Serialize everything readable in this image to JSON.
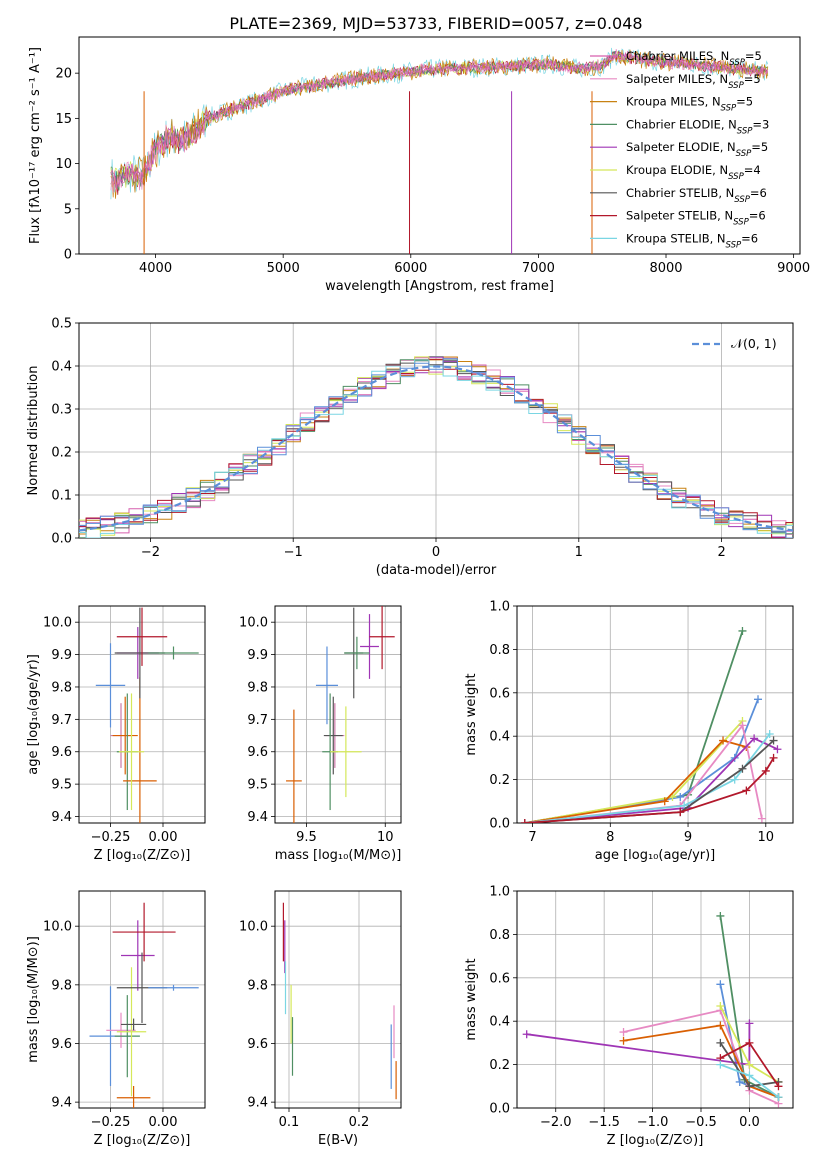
{
  "figure": {
    "title": "PLATE=2369, MJD=53733, FIBERID=0057, z=0.048"
  },
  "colors": [
    "#cc79a7",
    "#e78ac3",
    "#d95f02",
    "#4f8f63",
    "#9f35b5",
    "#d5e85a",
    "#555555",
    "#b2182b",
    "#7ad6e3",
    "#5b8fd9"
  ],
  "models": [
    {
      "name": "Chabrier MILES",
      "n": "5",
      "color": "#d65fae"
    },
    {
      "name": "Salpeter MILES",
      "n": "5",
      "color": "#e78ac3"
    },
    {
      "name": "Kroupa MILES",
      "n": "5",
      "color": "#c88213"
    },
    {
      "name": "Chabrier ELODIE",
      "n": "3",
      "color": "#4f8f63"
    },
    {
      "name": "Salpeter ELODIE",
      "n": "5",
      "color": "#9f35b5"
    },
    {
      "name": "Kroupa ELODIE",
      "n": "4",
      "color": "#d5e85a"
    },
    {
      "name": "Chabrier STELIB",
      "n": "6",
      "color": "#555555"
    },
    {
      "name": "Salpeter STELIB",
      "n": "6",
      "color": "#b2182b"
    },
    {
      "name": "Kroupa STELIB",
      "n": "6",
      "color": "#7ad6e3"
    }
  ],
  "chart_data": [
    {
      "id": "spectrum",
      "type": "line",
      "xlabel": "wavelength [Angstrom, rest frame]",
      "ylabel": "Flux [fλ10⁻¹⁷ erg cm⁻² s⁻¹ A⁻¹]",
      "xlim": [
        3400,
        9050
      ],
      "ylim": [
        0,
        24
      ],
      "xticks": [
        4000,
        5000,
        6000,
        7000,
        8000,
        9000
      ],
      "yticks": [
        0,
        5,
        10,
        15,
        20
      ],
      "grid": false,
      "legend": "top-right",
      "continuum": {
        "x": [
          3650,
          3700,
          3800,
          3900,
          4000,
          4100,
          4200,
          4300,
          4400,
          4500,
          4700,
          5000,
          5300,
          5600,
          5900,
          6200,
          6500,
          6800,
          7100,
          7300,
          7500,
          7600,
          7800,
          8000,
          8200,
          8500,
          8800
        ],
        "y": [
          8.5,
          8.0,
          9.0,
          8.5,
          11.5,
          13.0,
          12.5,
          13.5,
          15.0,
          15.5,
          16.5,
          18.0,
          18.8,
          19.5,
          20.0,
          20.5,
          20.6,
          20.8,
          21.0,
          20.5,
          20.8,
          22.0,
          21.5,
          21.2,
          21.0,
          20.5,
          20.2
        ]
      }
    },
    {
      "id": "residuals",
      "type": "line",
      "xlabel": "(data-model)/error",
      "ylabel": "Normed distribution",
      "xlim": [
        -2.5,
        2.5
      ],
      "ylim": [
        0,
        0.5
      ],
      "xticks": [
        -2,
        -1,
        0,
        1,
        2
      ],
      "yticks": [
        0.0,
        0.1,
        0.2,
        0.3,
        0.4,
        0.5
      ],
      "grid": true,
      "legend": "top-right",
      "reference_label": "𝒩(0, 1)",
      "reference": {
        "mean": 0,
        "sigma": 1
      }
    },
    {
      "id": "age-vs-Z",
      "type": "scatter",
      "xlabel": "Z [log₁₀(Z/Z⊙)]",
      "ylabel": "age  [log₁₀(age/yr)]",
      "xlim": [
        -0.4,
        0.2
      ],
      "ylim": [
        9.38,
        10.05
      ],
      "xticks": [
        -0.25,
        0.0
      ],
      "xticklabels": [
        "−0.25",
        "0.00"
      ],
      "yticks": [
        9.4,
        9.5,
        9.6,
        9.7,
        9.8,
        9.9,
        10.0
      ],
      "grid": true,
      "points": [
        {
          "x": -0.25,
          "y": 9.805,
          "xerr": 0.07,
          "yerr": 0.13,
          "c": 9
        },
        {
          "x": -0.2,
          "y": 9.65,
          "xerr": 0.05,
          "yerr": 0.1,
          "c": 0
        },
        {
          "x": -0.18,
          "y": 9.65,
          "xerr": 0.06,
          "yerr": 0.12,
          "c": 2
        },
        {
          "x": -0.17,
          "y": 9.6,
          "xerr": 0.05,
          "yerr": 0.18,
          "c": 3
        },
        {
          "x": -0.11,
          "y": 9.51,
          "xerr": 0.08,
          "yerr": 0.32,
          "c": 2
        },
        {
          "x": -0.15,
          "y": 9.6,
          "xerr": 0.06,
          "yerr": 0.18,
          "c": 5
        },
        {
          "x": -0.12,
          "y": 9.905,
          "xerr": 0.1,
          "yerr": 0.08,
          "c": 4
        },
        {
          "x": -0.11,
          "y": 9.905,
          "xerr": 0.12,
          "yerr": 0.14,
          "c": 6
        },
        {
          "x": -0.1,
          "y": 9.955,
          "xerr": 0.12,
          "yerr": 0.09,
          "c": 7
        },
        {
          "x": 0.05,
          "y": 9.905,
          "xerr": 0.12,
          "yerr": 0.02,
          "c": 3
        }
      ]
    },
    {
      "id": "age-vs-mass",
      "type": "scatter",
      "xlabel": "mass [log₁₀(M/M⊙)]",
      "xlim": [
        9.3,
        10.1
      ],
      "ylim": [
        9.38,
        10.05
      ],
      "xticks": [
        9.5,
        10.0
      ],
      "yticks": [
        9.4,
        9.5,
        9.6,
        9.7,
        9.8,
        9.9,
        10.0
      ],
      "grid": true,
      "points": [
        {
          "x": 9.63,
          "y": 9.805,
          "xerr": 0.07,
          "yerr": 0.12,
          "c": 9
        },
        {
          "x": 9.68,
          "y": 9.65,
          "xerr": 0.06,
          "yerr": 0.1,
          "c": 0
        },
        {
          "x": 9.67,
          "y": 9.65,
          "xerr": 0.06,
          "yerr": 0.12,
          "c": 6
        },
        {
          "x": 9.65,
          "y": 9.6,
          "xerr": 0.05,
          "yerr": 0.18,
          "c": 3
        },
        {
          "x": 9.42,
          "y": 9.51,
          "xerr": 0.05,
          "yerr": 0.22,
          "c": 2
        },
        {
          "x": 9.75,
          "y": 9.6,
          "xerr": 0.1,
          "yerr": 0.14,
          "c": 5
        },
        {
          "x": 9.9,
          "y": 9.925,
          "xerr": 0.06,
          "yerr": 0.1,
          "c": 4
        },
        {
          "x": 9.8,
          "y": 9.905,
          "xerr": 0.06,
          "yerr": 0.14,
          "c": 6
        },
        {
          "x": 9.98,
          "y": 9.955,
          "xerr": 0.08,
          "yerr": 0.1,
          "c": 7
        },
        {
          "x": 9.82,
          "y": 9.905,
          "xerr": 0.08,
          "yerr": 0.05,
          "c": 3
        }
      ]
    },
    {
      "id": "weight-vs-age",
      "type": "line",
      "xlabel": "age  [log₁₀(age/yr)]",
      "ylabel": "mass weight",
      "xlim": [
        6.8,
        10.35
      ],
      "ylim": [
        0,
        1.0
      ],
      "xticks": [
        7,
        8,
        9,
        10
      ],
      "yticks": [
        0.0,
        0.2,
        0.4,
        0.6,
        0.8,
        1.0
      ],
      "grid": true,
      "series": [
        {
          "c": 3,
          "x": [
            6.9,
            9.0,
            9.7
          ],
          "y": [
            0.0,
            0.13,
            0.885
          ]
        },
        {
          "c": 9,
          "x": [
            6.9,
            8.9,
            9.6,
            9.9
          ],
          "y": [
            0.0,
            0.12,
            0.3,
            0.57
          ]
        },
        {
          "c": 5,
          "x": [
            6.9,
            8.8,
            9.7
          ],
          "y": [
            0.0,
            0.12,
            0.47
          ]
        },
        {
          "c": 2,
          "x": [
            6.9,
            8.7,
            9.45,
            9.75
          ],
          "y": [
            0.0,
            0.1,
            0.38,
            0.35
          ]
        },
        {
          "c": 1,
          "x": [
            6.9,
            8.9,
            9.7,
            9.95
          ],
          "y": [
            0.0,
            0.08,
            0.45,
            0.02
          ]
        },
        {
          "c": 4,
          "x": [
            6.9,
            9.0,
            9.85,
            10.15
          ],
          "y": [
            0.0,
            0.07,
            0.39,
            0.34
          ]
        },
        {
          "c": 8,
          "x": [
            6.9,
            8.95,
            9.6,
            10.05
          ],
          "y": [
            0.0,
            0.08,
            0.2,
            0.41
          ]
        },
        {
          "c": 6,
          "x": [
            6.9,
            8.9,
            9.7,
            10.1
          ],
          "y": [
            0.0,
            0.05,
            0.25,
            0.38
          ]
        },
        {
          "c": 7,
          "x": [
            6.9,
            8.9,
            9.75,
            10.0,
            10.1
          ],
          "y": [
            0.0,
            0.05,
            0.15,
            0.24,
            0.3
          ]
        }
      ]
    },
    {
      "id": "mass-vs-Z",
      "type": "scatter",
      "xlabel": "Z [log₁₀(Z/Z⊙)]",
      "ylabel": "mass [log₁₀(M/M⊙)]",
      "xlim": [
        -0.4,
        0.2
      ],
      "ylim": [
        9.38,
        10.12
      ],
      "xticks": [
        -0.25,
        0.0
      ],
      "xticklabels": [
        "−0.25",
        "0.00"
      ],
      "yticks": [
        9.4,
        9.6,
        9.8,
        10.0
      ],
      "grid": true,
      "points": [
        {
          "x": -0.25,
          "y": 9.625,
          "xerr": 0.1,
          "yerr": 0.17,
          "c": 9
        },
        {
          "x": -0.2,
          "y": 9.645,
          "xerr": 0.07,
          "yerr": 0.06,
          "c": 1
        },
        {
          "x": -0.17,
          "y": 9.625,
          "xerr": 0.06,
          "yerr": 0.14,
          "c": 3
        },
        {
          "x": -0.15,
          "y": 9.64,
          "xerr": 0.07,
          "yerr": 0.22,
          "c": 5
        },
        {
          "x": -0.14,
          "y": 9.665,
          "xerr": 0.06,
          "yerr": 0.02,
          "c": 6
        },
        {
          "x": -0.14,
          "y": 9.415,
          "xerr": 0.08,
          "yerr": 0.04,
          "c": 2
        },
        {
          "x": -0.12,
          "y": 9.9,
          "xerr": 0.08,
          "yerr": 0.12,
          "c": 4
        },
        {
          "x": -0.1,
          "y": 9.79,
          "xerr": 0.12,
          "yerr": 0.12,
          "c": 6
        },
        {
          "x": -0.09,
          "y": 9.98,
          "xerr": 0.15,
          "yerr": 0.1,
          "c": 7
        },
        {
          "x": 0.05,
          "y": 9.79,
          "xerr": 0.12,
          "yerr": 0.01,
          "c": 9
        }
      ]
    },
    {
      "id": "mass-vs-ebv",
      "type": "scatter",
      "xlabel": "E(B-V)",
      "xlim": [
        0.08,
        0.26
      ],
      "ylim": [
        9.38,
        10.12
      ],
      "xticks": [
        0.1,
        0.2
      ],
      "yticks": [
        9.4,
        9.6,
        9.8,
        10.0
      ],
      "grid": true,
      "points": [
        {
          "x": 0.092,
          "y": 9.98,
          "xerr": 0,
          "yerr": 0.1,
          "c": 7
        },
        {
          "x": 0.094,
          "y": 9.93,
          "xerr": 0,
          "yerr": 0.09,
          "c": 4
        },
        {
          "x": 0.095,
          "y": 9.79,
          "xerr": 0,
          "yerr": 0.09,
          "c": 8
        },
        {
          "x": 0.103,
          "y": 9.7,
          "xerr": 0,
          "yerr": 0.1,
          "c": 5
        },
        {
          "x": 0.105,
          "y": 9.59,
          "xerr": 0,
          "yerr": 0.1,
          "c": 3
        },
        {
          "x": 0.246,
          "y": 9.555,
          "xerr": 0,
          "yerr": 0.11,
          "c": 9
        },
        {
          "x": 0.25,
          "y": 9.64,
          "xerr": 0,
          "yerr": 0.09,
          "c": 1
        },
        {
          "x": 0.253,
          "y": 9.475,
          "xerr": 0,
          "yerr": 0.065,
          "c": 2
        }
      ]
    },
    {
      "id": "weight-vs-Z",
      "type": "line",
      "xlabel": "Z [log₁₀(Z/Z⊙)]",
      "ylabel": "mass weight",
      "xlim": [
        -2.4,
        0.45
      ],
      "ylim": [
        0,
        1.0
      ],
      "xticks": [
        -2.0,
        -1.5,
        -1.0,
        -0.5,
        0.0
      ],
      "xticklabels": [
        "−2.0",
        "−1.5",
        "−1.0",
        "−0.5",
        "0.0"
      ],
      "yticks": [
        0.0,
        0.2,
        0.4,
        0.6,
        0.8,
        1.0
      ],
      "grid": true,
      "series": [
        {
          "c": 3,
          "x": [
            -0.3,
            -0.05,
            0.3
          ],
          "y": [
            0.885,
            0.13,
            0.05
          ]
        },
        {
          "c": 9,
          "x": [
            -0.3,
            -0.1,
            0.3
          ],
          "y": [
            0.57,
            0.12,
            0.05
          ]
        },
        {
          "c": 4,
          "x": [
            -2.3,
            0.0,
            0.0
          ],
          "y": [
            0.34,
            0.2,
            0.39
          ]
        },
        {
          "c": 1,
          "x": [
            -1.3,
            -0.3,
            0.0,
            0.3
          ],
          "y": [
            0.35,
            0.45,
            0.08,
            0.02
          ]
        },
        {
          "c": 2,
          "x": [
            -1.3,
            -0.3,
            0.0,
            0.3
          ],
          "y": [
            0.31,
            0.38,
            0.1,
            0.05
          ]
        },
        {
          "c": 5,
          "x": [
            -0.3,
            0.0,
            0.3
          ],
          "y": [
            0.47,
            0.2,
            0.12
          ]
        },
        {
          "c": 6,
          "x": [
            -0.3,
            0.0,
            0.3
          ],
          "y": [
            0.3,
            0.1,
            0.12
          ]
        },
        {
          "c": 7,
          "x": [
            -0.3,
            0.0,
            0.3
          ],
          "y": [
            0.23,
            0.3,
            0.1
          ]
        },
        {
          "c": 8,
          "x": [
            -0.3,
            0.0,
            0.3
          ],
          "y": [
            0.2,
            0.15,
            0.05
          ]
        }
      ]
    }
  ]
}
